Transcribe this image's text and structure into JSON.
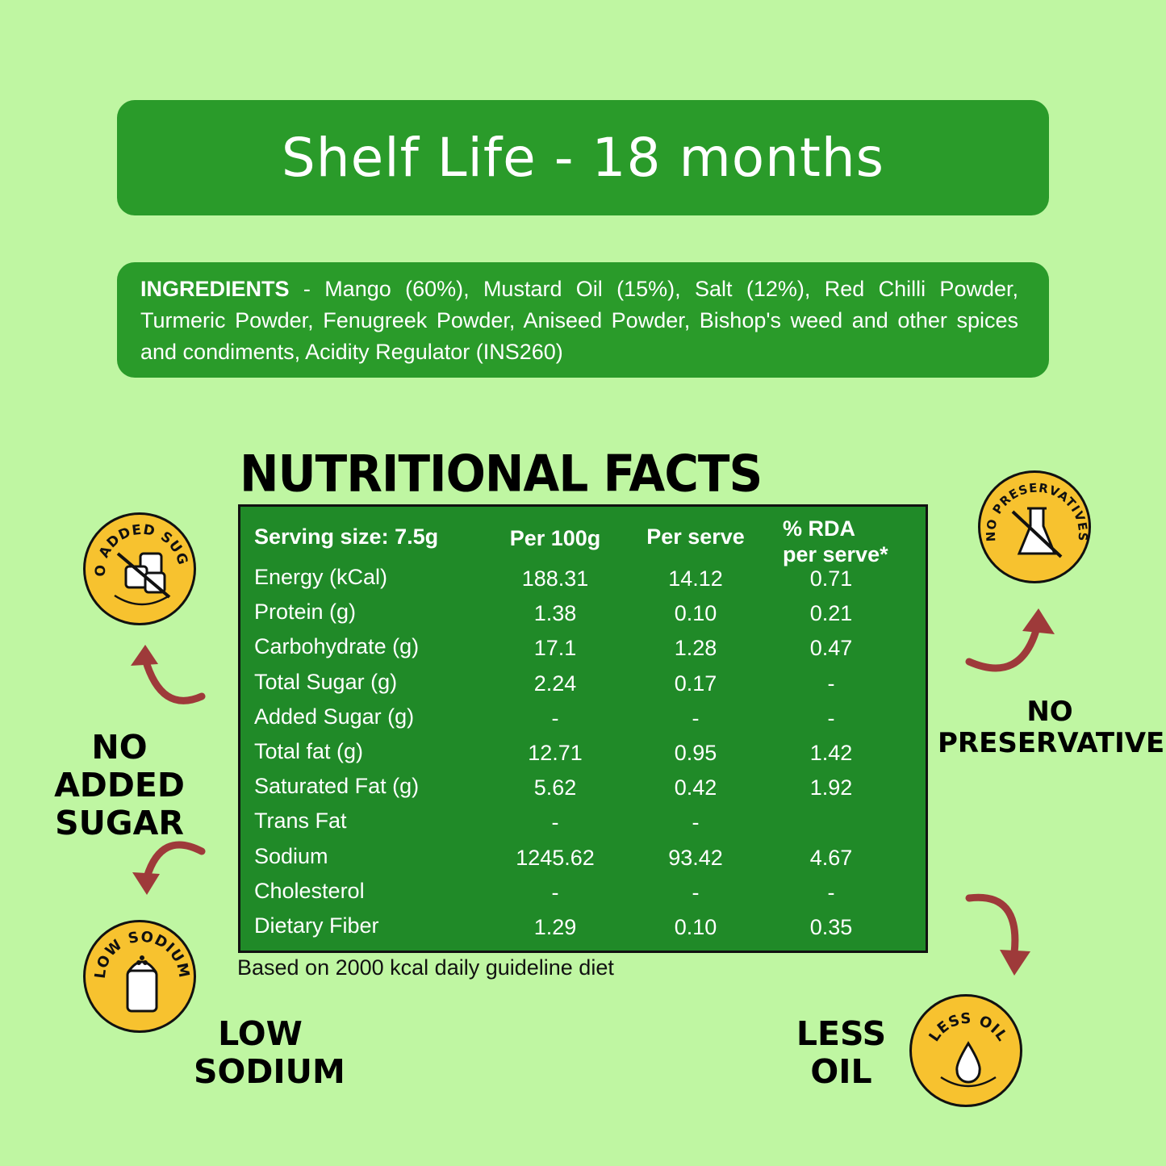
{
  "shelf_life": "Shelf Life - 18 months",
  "ingredients": {
    "heading": "INGREDIENTS",
    "text": " - Mango (60%), Mustard Oil (15%), Salt (12%), Red Chilli Powder, Turmeric Powder, Fenugreek Powder, Aniseed Powder, Bishop's weed and other spices and condiments, Acidity Regulator (INS260)"
  },
  "nutrition": {
    "title": "NUTRITIONAL FACTS",
    "headers": [
      "Serving size: 7.5g",
      "Per 100g",
      "Per serve",
      "% RDA",
      "per serve*"
    ],
    "rows": [
      {
        "label": "Energy (kCal)",
        "per100": "188.31",
        "serve": "14.12",
        "rda": "0.71"
      },
      {
        "label": "Protein (g)",
        "per100": "1.38",
        "serve": "0.10",
        "rda": "0.21"
      },
      {
        "label": "Carbohydrate (g)",
        "per100": "17.1",
        "serve": "1.28",
        "rda": "0.47"
      },
      {
        "label": "Total Sugar (g)",
        "per100": "2.24",
        "serve": "0.17",
        "rda": "-"
      },
      {
        "label": "Added Sugar (g)",
        "per100": "-",
        "serve": "-",
        "rda": "-"
      },
      {
        "label": "Total fat (g)",
        "per100": "12.71",
        "serve": "0.95",
        "rda": "1.42"
      },
      {
        "label": "Saturated Fat (g)",
        "per100": "5.62",
        "serve": "0.42",
        "rda": "1.92"
      },
      {
        "label": "Trans Fat",
        "per100": "-",
        "serve": "-",
        "rda": ""
      },
      {
        "label": "Sodium",
        "per100": "1245.62",
        "serve": "93.42",
        "rda": "4.67"
      },
      {
        "label": "Cholesterol",
        "per100": "-",
        "serve": "-",
        "rda": "-"
      },
      {
        "label": "Dietary Fiber",
        "per100": "1.29",
        "serve": "0.10",
        "rda": "0.35"
      }
    ],
    "footnote": "Based on 2000 kcal daily guideline diet"
  },
  "badges": {
    "no_added_sugar": {
      "ring_text": "NO ADDED SUGAR",
      "claim_line1": "NO ADDED",
      "claim_line2": "SUGAR",
      "icon": "sugar-cubes-icon"
    },
    "no_preservatives": {
      "ring_text": "NO PRESERVATIVES",
      "claim_line1": "NO",
      "claim_line2": "PRESERVATIVES",
      "icon": "flask-icon"
    },
    "low_sodium": {
      "ring_text": "LOW SODIUM",
      "claim_line1": "LOW",
      "claim_line2": "SODIUM",
      "icon": "salt-shaker-icon"
    },
    "less_oil": {
      "ring_text": "LESS OIL",
      "claim_line1": "LESS",
      "claim_line2": "OIL",
      "icon": "oil-drop-icon"
    }
  },
  "colors": {
    "background": "#bff6a2",
    "green_panel": "#2a9b2a",
    "table_green": "#208a28",
    "badge_yellow": "#f7c22f",
    "arrow_red": "#9e3a3a"
  }
}
